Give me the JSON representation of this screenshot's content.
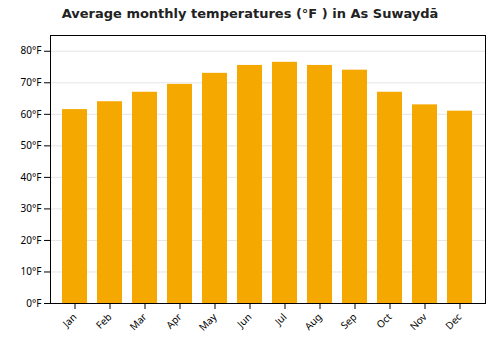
{
  "chart_data": {
    "type": "bar",
    "title": "Average monthly temperatures (°F ) in As Suwaydā",
    "categories": [
      "Jan",
      "Feb",
      "Mar",
      "Apr",
      "May",
      "Jun",
      "Jul",
      "Aug",
      "Sep",
      "Oct",
      "Nov",
      "Dec"
    ],
    "values": [
      61.5,
      64.0,
      67.0,
      69.5,
      73.0,
      75.5,
      76.5,
      75.5,
      74.0,
      67.0,
      63.0,
      61.0
    ],
    "color": "#F5A800",
    "ylim": [
      0,
      85
    ],
    "yticks": [
      {
        "value": 0,
        "label": "0°F"
      },
      {
        "value": 10,
        "label": "10°F"
      },
      {
        "value": 20,
        "label": "20°F"
      },
      {
        "value": 30,
        "label": "30°F"
      },
      {
        "value": 40,
        "label": "40°F"
      },
      {
        "value": 50,
        "label": "50°F"
      },
      {
        "value": 60,
        "label": "60°F"
      },
      {
        "value": 70,
        "label": "70°F"
      },
      {
        "value": 80,
        "label": "80°F"
      }
    ],
    "grid": true
  }
}
